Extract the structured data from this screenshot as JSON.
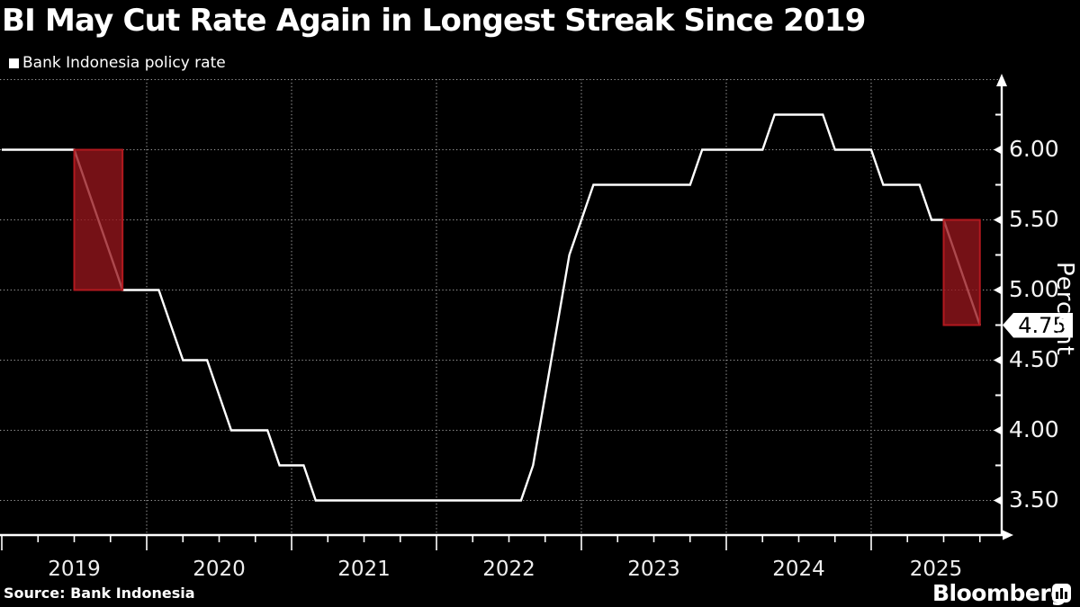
{
  "header": {
    "title": "BI May Cut Rate Again in Longest Streak Since 2019"
  },
  "footer": {
    "source": "Source: Bank Indonesia",
    "brand": "Bloomberg"
  },
  "icons": {
    "legend_swatch": "white-square",
    "brand_icon": "bloomberg-bar-chart-glyph"
  },
  "chart_data": {
    "type": "line",
    "title": "BI May Cut Rate Again in Longest Streak Since 2019",
    "legend": "Bank Indonesia policy rate",
    "ylabel": "Percent",
    "xlabel": "",
    "x_start_year": 2019,
    "x_years": [
      "2019",
      "2020",
      "2021",
      "2022",
      "2023",
      "2024",
      "2025"
    ],
    "ylim_visible": [
      3.25,
      6.5
    ],
    "grid": "dotted",
    "y_gridlines": [
      6.5,
      6.0,
      5.5,
      5.0,
      4.5,
      4.0,
      3.5
    ],
    "y_ticks_labeled": [
      {
        "value": 6.0,
        "label": "6.00"
      },
      {
        "value": 5.5,
        "label": "5.50"
      },
      {
        "value": 5.0,
        "label": "5.00"
      },
      {
        "value": 4.5,
        "label": "4.50"
      },
      {
        "value": 4.0,
        "label": "4.00"
      },
      {
        "value": 3.5,
        "label": "3.50"
      }
    ],
    "y_ticks_minor": [
      6.25,
      5.75,
      5.25,
      4.75,
      4.25,
      3.75
    ],
    "series": [
      {
        "name": "Bank Indonesia policy rate",
        "unit": "percent",
        "points_month_rate": [
          [
            0,
            6.0
          ],
          [
            6,
            6.0
          ],
          [
            7,
            5.75
          ],
          [
            8,
            5.5
          ],
          [
            9,
            5.25
          ],
          [
            10,
            5.0
          ],
          [
            13,
            5.0
          ],
          [
            14,
            4.75
          ],
          [
            15,
            4.5
          ],
          [
            17,
            4.5
          ],
          [
            18,
            4.25
          ],
          [
            19,
            4.0
          ],
          [
            22,
            4.0
          ],
          [
            23,
            3.75
          ],
          [
            25,
            3.75
          ],
          [
            26,
            3.5
          ],
          [
            43,
            3.5
          ],
          [
            44,
            3.75
          ],
          [
            45,
            4.25
          ],
          [
            46,
            4.75
          ],
          [
            47,
            5.25
          ],
          [
            48,
            5.5
          ],
          [
            49,
            5.75
          ],
          [
            57,
            5.75
          ],
          [
            58,
            6.0
          ],
          [
            63,
            6.0
          ],
          [
            64,
            6.25
          ],
          [
            68,
            6.25
          ],
          [
            69,
            6.0
          ],
          [
            72,
            6.0
          ],
          [
            73,
            5.75
          ],
          [
            76,
            5.75
          ],
          [
            77,
            5.5
          ],
          [
            78,
            5.5
          ],
          [
            79,
            5.25
          ],
          [
            80,
            5.0
          ],
          [
            81,
            4.75
          ]
        ]
      }
    ],
    "current_value_label": "4.75",
    "highlights": [
      {
        "name": "2019-easing-streak",
        "from_month": 6,
        "to_month": 10,
        "top": 6.0,
        "bottom": 5.0
      },
      {
        "name": "2025-easing-streak",
        "from_month": 78,
        "to_month": 81,
        "top": 5.5,
        "bottom": 4.75
      }
    ],
    "colors": {
      "background": "#000000",
      "line": "#ffffff",
      "grid": "#9b9b9b",
      "highlight_fill": "#96161c",
      "highlight_border": "#b2191f",
      "tag_background": "#ffffff",
      "tag_text": "#000000"
    }
  }
}
